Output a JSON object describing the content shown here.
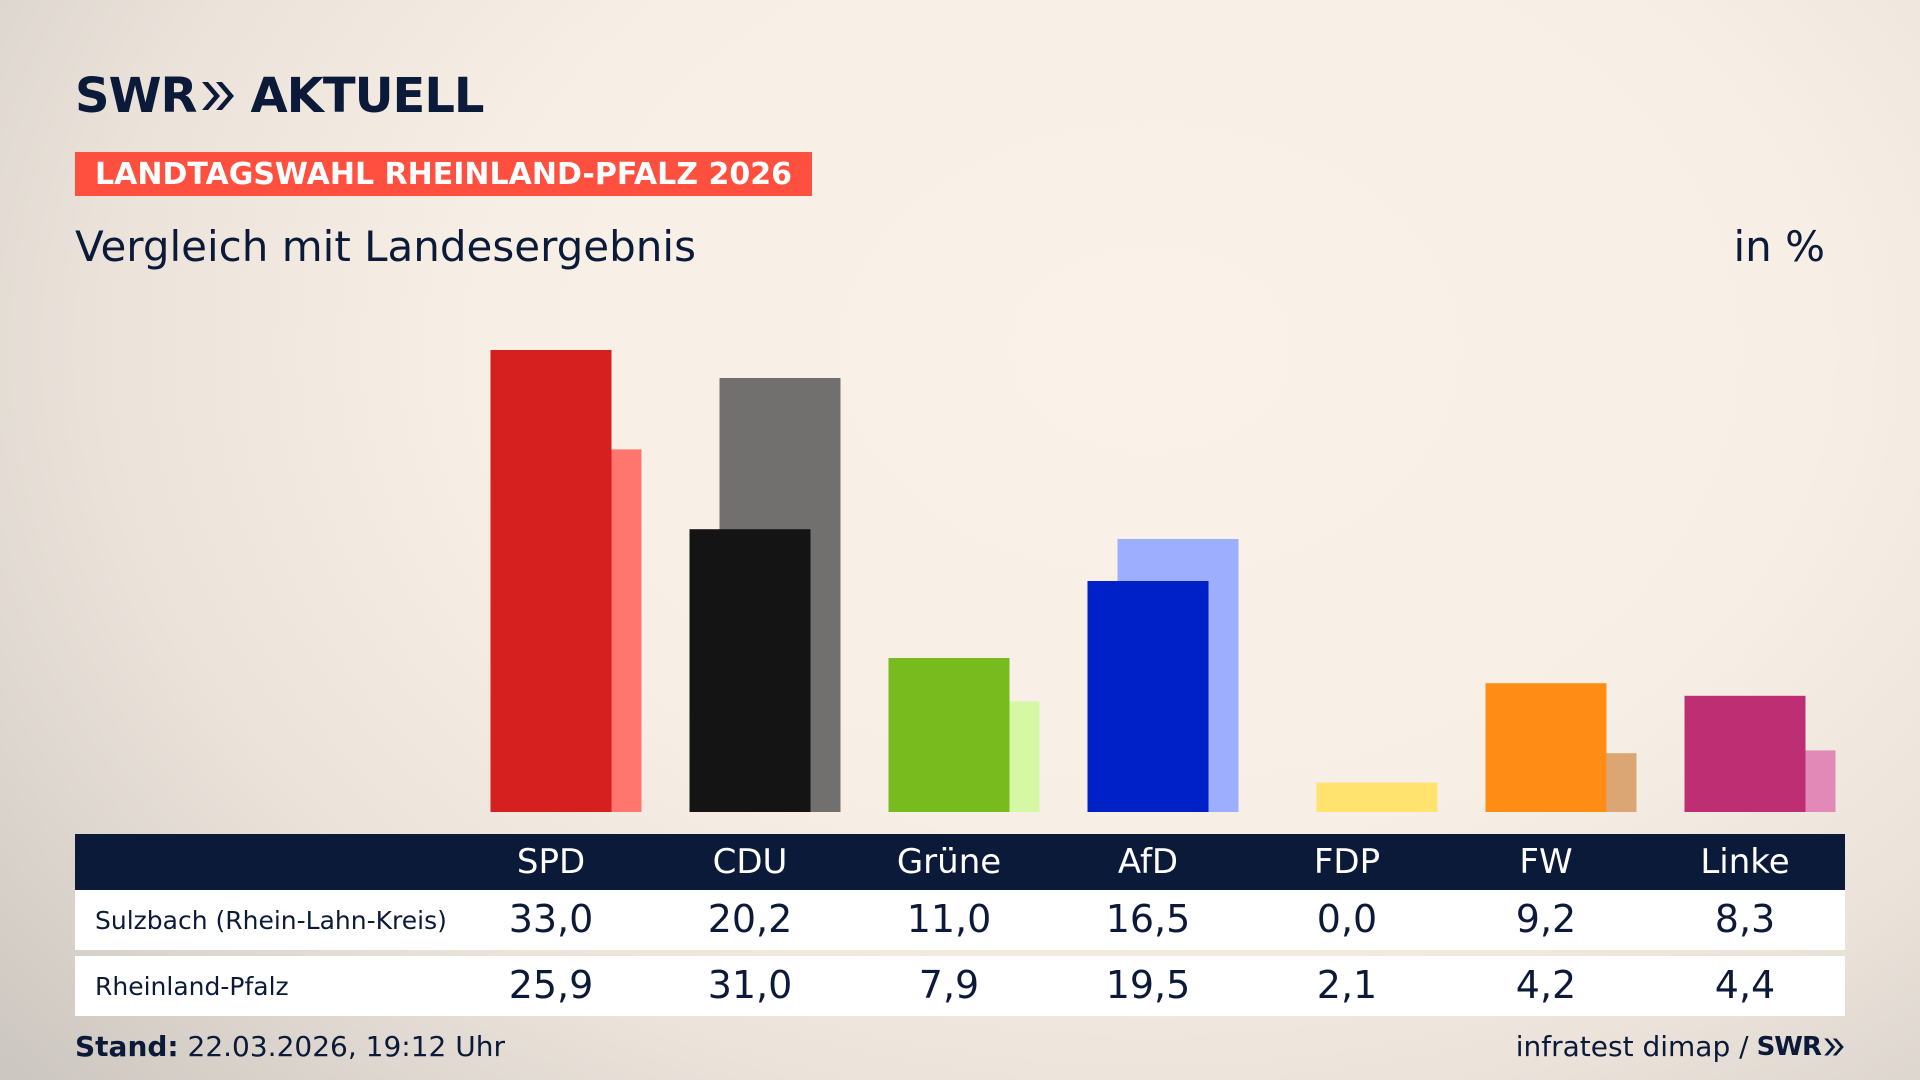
{
  "brand": {
    "logo_left": "SWR",
    "logo_right": "AKTUELL"
  },
  "header": {
    "badge": "LANDTAGSWAHL RHEINLAND-PFALZ 2026",
    "subtitle": "Vergleich mit Landesergebnis",
    "unit": "in %"
  },
  "colors": {
    "navy": "#0c1a39",
    "badge": "#ff4f3e"
  },
  "chart_data": {
    "type": "bar",
    "categories": [
      "SPD",
      "CDU",
      "Grüne",
      "AfD",
      "FDP",
      "FW",
      "Linke"
    ],
    "series": [
      {
        "name": "Sulzbach (Rhein-Lahn-Kreis)",
        "values": [
          33.0,
          20.2,
          11.0,
          16.5,
          0.0,
          9.2,
          8.3
        ],
        "display": [
          "33,0",
          "20,2",
          "11,0",
          "16,5",
          "0,0",
          "9,2",
          "8,3"
        ],
        "colors": [
          "#d61f1f",
          "#141414",
          "#77bb1e",
          "#0020c8",
          "#ffe36e",
          "#ff8c14",
          "#bd2f72"
        ]
      },
      {
        "name": "Rheinland-Pfalz",
        "values": [
          25.9,
          31.0,
          7.9,
          19.5,
          2.1,
          4.2,
          4.4
        ],
        "display": [
          "25,9",
          "31,0",
          "7,9",
          "19,5",
          "2,1",
          "4,2",
          "4,4"
        ],
        "colors": [
          "#ff766e",
          "#72706e",
          "#d6f7a4",
          "#9eaeff",
          "#ffe36e",
          "#dca674",
          "#e18ab7"
        ]
      }
    ],
    "ylim": [
      0,
      34
    ]
  },
  "footer": {
    "stand_label": "Stand:",
    "stand_value": " 22.03.2026, 19:12 Uhr",
    "source": "infratest dimap /",
    "source_brand": "SWR"
  }
}
